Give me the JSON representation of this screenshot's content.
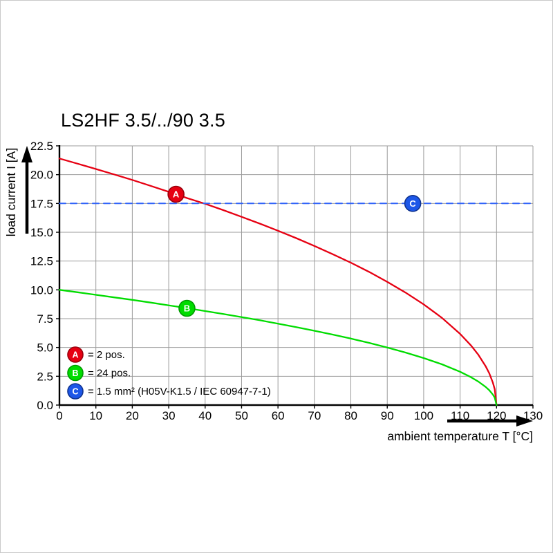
{
  "chart_data": {
    "type": "line",
    "title": "LS2HF 3.5/../90 3.5",
    "xlabel": "ambient temperature T [°C]",
    "ylabel": "load current I [A]",
    "xlim": [
      0,
      130
    ],
    "ylim": [
      0,
      22.5
    ],
    "x_ticks": [
      0,
      10,
      20,
      30,
      40,
      50,
      60,
      70,
      80,
      90,
      100,
      110,
      120,
      130
    ],
    "y_ticks": [
      0,
      2.5,
      5,
      7.5,
      10,
      12.5,
      15,
      17.5,
      20,
      22.5
    ],
    "grid": true,
    "grid_color": "#9b9b9b",
    "axis_color": "#000000",
    "legend_position": "lower-left-inside",
    "series": [
      {
        "name": "A",
        "color": "#e60012",
        "style": "solid",
        "points": [
          [
            0,
            21.4
          ],
          [
            5,
            20.95
          ],
          [
            10,
            20.49
          ],
          [
            15,
            20.02
          ],
          [
            20,
            19.54
          ],
          [
            25,
            19.03
          ],
          [
            30,
            18.51
          ],
          [
            35,
            17.97
          ],
          [
            40,
            17.47
          ],
          [
            45,
            16.92
          ],
          [
            50,
            16.34
          ],
          [
            55,
            15.75
          ],
          [
            60,
            15.13
          ],
          [
            65,
            14.49
          ],
          [
            70,
            13.81
          ],
          [
            75,
            13.1
          ],
          [
            80,
            12.36
          ],
          [
            85,
            11.56
          ],
          [
            90,
            10.7
          ],
          [
            95,
            9.77
          ],
          [
            100,
            8.74
          ],
          [
            105,
            7.57
          ],
          [
            110,
            6.18
          ],
          [
            113,
            5.17
          ],
          [
            115,
            4.37
          ],
          [
            117,
            3.38
          ],
          [
            118,
            2.76
          ],
          [
            119,
            1.95
          ],
          [
            119.5,
            1.38
          ],
          [
            120,
            0
          ]
        ]
      },
      {
        "name": "B",
        "color": "#00dc00",
        "style": "solid",
        "points": [
          [
            0,
            10.0
          ],
          [
            5,
            9.79
          ],
          [
            10,
            9.57
          ],
          [
            15,
            9.35
          ],
          [
            20,
            9.13
          ],
          [
            25,
            8.9
          ],
          [
            30,
            8.66
          ],
          [
            35,
            8.42
          ],
          [
            40,
            8.16
          ],
          [
            45,
            7.91
          ],
          [
            50,
            7.64
          ],
          [
            55,
            7.36
          ],
          [
            60,
            7.07
          ],
          [
            65,
            6.77
          ],
          [
            70,
            6.45
          ],
          [
            75,
            6.12
          ],
          [
            80,
            5.77
          ],
          [
            85,
            5.4
          ],
          [
            90,
            5.0
          ],
          [
            95,
            4.56
          ],
          [
            100,
            4.08
          ],
          [
            105,
            3.54
          ],
          [
            110,
            2.89
          ],
          [
            113,
            2.42
          ],
          [
            115,
            2.04
          ],
          [
            117,
            1.58
          ],
          [
            118,
            1.29
          ],
          [
            119,
            0.91
          ],
          [
            119.5,
            0.65
          ],
          [
            120,
            0
          ]
        ]
      },
      {
        "name": "C",
        "color": "#2f62fa",
        "style": "dashed",
        "points": [
          [
            0,
            17.5
          ],
          [
            130,
            17.5
          ]
        ]
      }
    ],
    "markers": [
      {
        "letter": "A",
        "x": 32,
        "y": 18.3,
        "fill": "#e60012",
        "edge": "#99000c"
      },
      {
        "letter": "B",
        "x": 35,
        "y": 8.4,
        "fill": "#00dc00",
        "edge": "#009a00"
      },
      {
        "letter": "C",
        "x": 97,
        "y": 17.5,
        "fill": "#1d57e8",
        "edge": "#10338f"
      }
    ],
    "legend": [
      {
        "letter": "A",
        "text": "= 2 pos.",
        "fill": "#e60012",
        "edge": "#99000c"
      },
      {
        "letter": "B",
        "text": "= 24 pos.",
        "fill": "#00dc00",
        "edge": "#009a00"
      },
      {
        "letter": "C",
        "text": "= 1.5 mm² (H05V-K1.5 / IEC 60947-7-1)",
        "fill": "#1d57e8",
        "edge": "#10338f"
      }
    ]
  }
}
